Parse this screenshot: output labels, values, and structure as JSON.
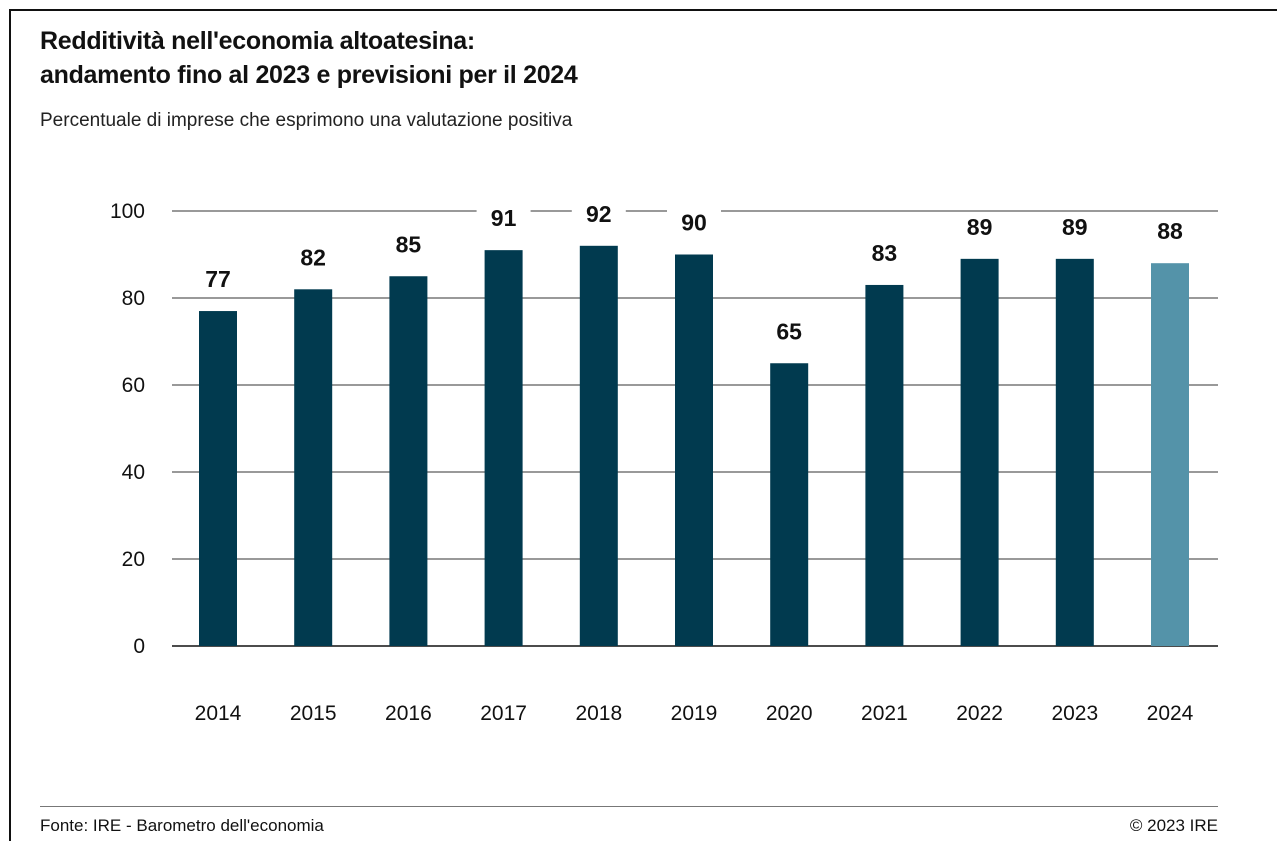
{
  "header": {
    "title_line1": "Redditività nell'economia altoatesina:",
    "title_line2": "andamento fino al 2023 e previsioni per il 2024",
    "subtitle": "Percentuale di imprese che esprimono una valutazione positiva"
  },
  "footer": {
    "source": "Fonte: IRE - Barometro dell'economia",
    "copyright": "© 2023 IRE"
  },
  "colors": {
    "actual": "#013a4f",
    "forecast": "#5493a9",
    "grid": "#333333"
  },
  "chart_data": {
    "type": "bar",
    "categories": [
      "2014",
      "2015",
      "2016",
      "2017",
      "2018",
      "2019",
      "2020",
      "2021",
      "2022",
      "2023",
      "2024"
    ],
    "values": [
      77,
      82,
      85,
      91,
      92,
      90,
      65,
      83,
      89,
      89,
      88
    ],
    "labels": [
      "77",
      "82",
      "85",
      "91",
      "92",
      "90",
      "65",
      "83",
      "89",
      "89",
      "88"
    ],
    "forecast_categories": [
      "2024"
    ],
    "ylim": [
      0,
      100
    ],
    "yticks": [
      0,
      20,
      40,
      60,
      80,
      100
    ],
    "grid": true,
    "legend": "none"
  }
}
